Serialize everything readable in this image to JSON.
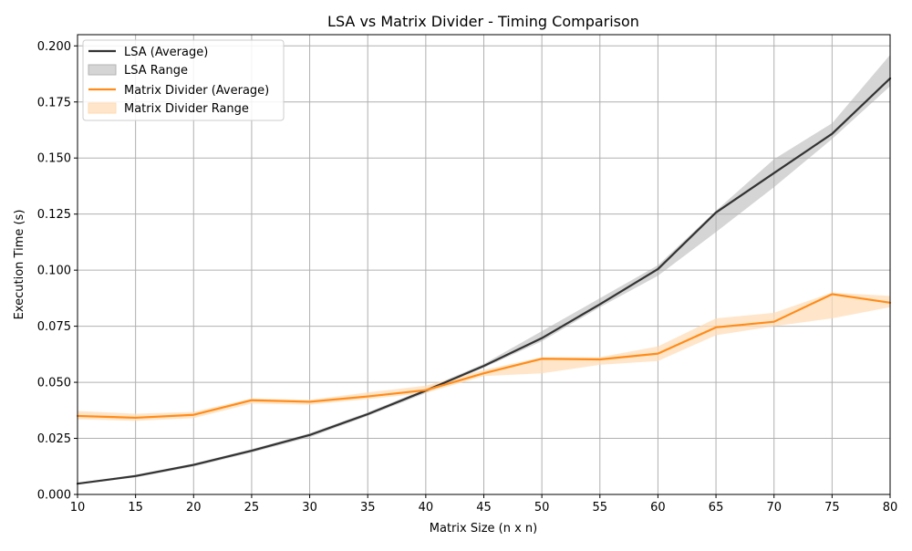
{
  "chart_data": {
    "type": "line",
    "title": "LSA vs Matrix Divider - Timing Comparison",
    "xlabel": "Matrix Size (n x n)",
    "ylabel": "Execution Time (s)",
    "xlim": [
      10,
      80
    ],
    "ylim": [
      0,
      0.205
    ],
    "xticks": [
      10,
      15,
      20,
      25,
      30,
      35,
      40,
      45,
      50,
      55,
      60,
      65,
      70,
      75,
      80
    ],
    "yticks": [
      0.0,
      0.025,
      0.05,
      0.075,
      0.1,
      0.125,
      0.15,
      0.175,
      0.2
    ],
    "ytick_labels": [
      "0.000",
      "0.025",
      "0.050",
      "0.075",
      "0.100",
      "0.125",
      "0.150",
      "0.175",
      "0.200"
    ],
    "grid": true,
    "legend_position": "top-left",
    "x": [
      10,
      15,
      20,
      25,
      30,
      35,
      40,
      45,
      50,
      55,
      60,
      65,
      70,
      75,
      80
    ],
    "series": [
      {
        "name": "LSA (Average)",
        "range_name": "LSA Range",
        "color": "#333333",
        "fill_color": "#b3b3b3",
        "values": [
          0.0048,
          0.0082,
          0.0132,
          0.0195,
          0.0265,
          0.0358,
          0.0463,
          0.0573,
          0.0697,
          0.0848,
          0.1005,
          0.1257,
          0.1433,
          0.1608,
          0.1855
        ],
        "low": [
          0.0045,
          0.0076,
          0.0124,
          0.0187,
          0.0255,
          0.035,
          0.0452,
          0.0565,
          0.0683,
          0.0835,
          0.0975,
          0.117,
          0.137,
          0.1585,
          0.182
        ],
        "high": [
          0.0052,
          0.0088,
          0.0138,
          0.0202,
          0.0273,
          0.0366,
          0.0472,
          0.0582,
          0.0728,
          0.0875,
          0.1022,
          0.1265,
          0.1495,
          0.1655,
          0.196
        ]
      },
      {
        "name": "Matrix Divider (Average)",
        "range_name": "Matrix Divider Range",
        "color": "#ff8c1a",
        "fill_color": "#ffdbb3",
        "values": [
          0.035,
          0.0342,
          0.0355,
          0.042,
          0.0413,
          0.0437,
          0.0465,
          0.054,
          0.0605,
          0.0602,
          0.0628,
          0.0745,
          0.077,
          0.0893,
          0.0855
        ],
        "low": [
          0.0335,
          0.0328,
          0.034,
          0.0405,
          0.04,
          0.0425,
          0.0452,
          0.0528,
          0.054,
          0.0578,
          0.0595,
          0.071,
          0.075,
          0.0785,
          0.0835
        ],
        "high": [
          0.0372,
          0.036,
          0.0368,
          0.0428,
          0.0422,
          0.0455,
          0.0485,
          0.0555,
          0.0612,
          0.0612,
          0.066,
          0.0785,
          0.081,
          0.09,
          0.0885
        ]
      }
    ]
  }
}
